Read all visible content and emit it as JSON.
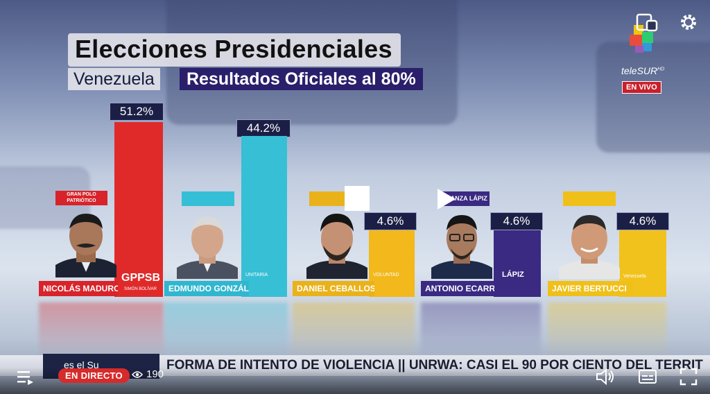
{
  "broadcast": {
    "title": "Elecciones Presidenciales",
    "country": "Venezuela",
    "subtitle": "Resultados Oficiales al 80%"
  },
  "candidates": [
    {
      "name": "NICOLÁS MADURO",
      "party_tag": "GRAN POLO PATRIÓTICO",
      "party_logo": "GPPSB",
      "party_logo_sub": "SIMÓN BOLÍVAR",
      "percent_label": "51.2%",
      "percent": 51.2,
      "bar_color": "#e02a2a",
      "name_bar_color": "#d8232a"
    },
    {
      "name": "EDMUNDO GONZÁLEZ",
      "party_tag": "",
      "party_logo": "UNITARIA",
      "percent_label": "44.2%",
      "percent": 44.2,
      "bar_color": "#37bfd6",
      "name_bar_color": "#30b6cf"
    },
    {
      "name": "DANIEL CEBALLOS",
      "party_tag": "",
      "party_logo": "VOLUNTAD",
      "percent_label": "4.6%",
      "percent": 4.6,
      "bar_color": "#f2b81c",
      "name_bar_color": "#eab21a"
    },
    {
      "name": "ANTONIO ECARRI",
      "party_tag": "ALIANZA LÁPIZ",
      "party_logo": "LÁPIZ",
      "percent_label": "4.6%",
      "percent": 4.6,
      "bar_color": "#3a2a82",
      "name_bar_color": "#3a2a82"
    },
    {
      "name": "JAVIER BERTUCCI",
      "party_tag": "",
      "party_logo": "Venezuela",
      "percent_label": "4.6%",
      "percent": 4.6,
      "bar_color": "#f2c21c",
      "name_bar_color": "#f0c01a"
    }
  ],
  "ticker": {
    "left_label": "es el Su",
    "text": "FORMA DE INTENTO DE VIOLENCIA  ||  UNRWA: CASI EL 90 POR CIENTO DEL TERRIT"
  },
  "channel": {
    "name": "teleSUR",
    "hd": "HD",
    "live": "EN VIVO"
  },
  "player": {
    "live_label": "EN DIRECTO",
    "viewers": "190",
    "icons": [
      "playlist-icon",
      "eye-icon",
      "volume-icon",
      "captions-icon",
      "fullscreen-icon",
      "cast-icon",
      "gear-icon",
      "play-icon",
      "pause-icon"
    ]
  }
}
